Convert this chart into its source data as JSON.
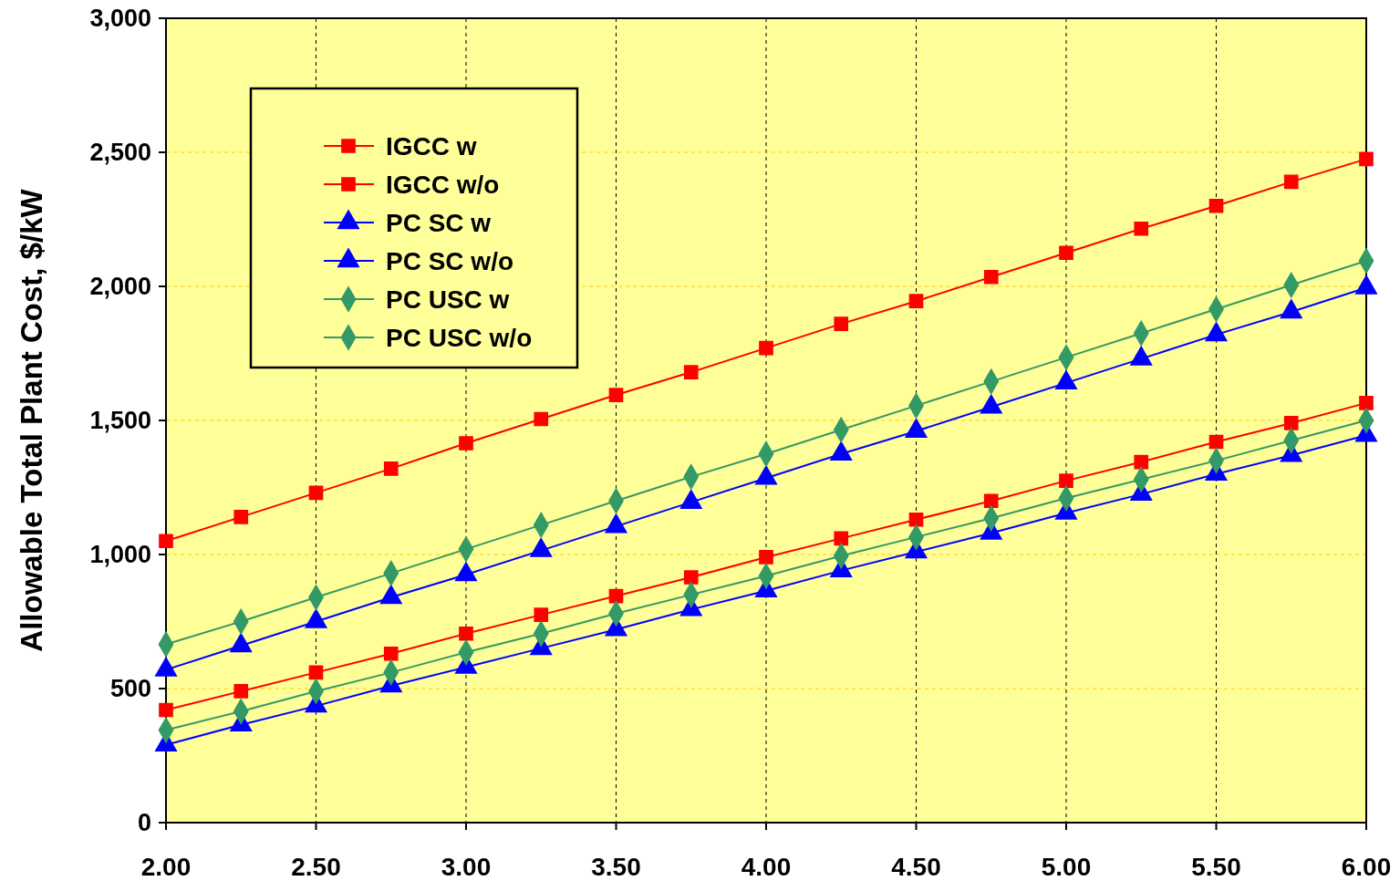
{
  "chart_data": {
    "type": "line",
    "ylabel": "Allowable Total Plant Cost, $/kW",
    "x": [
      2,
      2.25,
      2.5,
      2.75,
      3,
      3.25,
      3.5,
      3.75,
      4,
      4.25,
      4.5,
      4.75,
      5,
      5.25,
      5.5,
      5.75,
      6
    ],
    "xlim": [
      2,
      6
    ],
    "xticks": [
      {
        "value": 2,
        "label": "2.00"
      },
      {
        "value": 2.5,
        "label": "2.50"
      },
      {
        "value": 3,
        "label": "3.00"
      },
      {
        "value": 3.5,
        "label": "3.50"
      },
      {
        "value": 4,
        "label": "4.00"
      },
      {
        "value": 4.5,
        "label": "4.50"
      },
      {
        "value": 5,
        "label": "5.00"
      },
      {
        "value": 5.5,
        "label": "5.50"
      },
      {
        "value": 6,
        "label": "6.00"
      }
    ],
    "ylim": [
      0,
      3000
    ],
    "yticks": [
      0,
      {
        "value": 500,
        "label": "500"
      },
      {
        "value": 1000,
        "label": "1,000"
      },
      {
        "value": 1500,
        "label": "1,500"
      },
      {
        "value": 2000,
        "label": "2,000"
      },
      {
        "value": 2500,
        "label": "2,500"
      },
      {
        "value": 3000,
        "label": "3,000"
      }
    ],
    "grid": true,
    "legend": "top left",
    "line_style": "solid",
    "series": [
      {
        "name": "IGCC w",
        "color": "#ff0000",
        "marker": "square",
        "values": [
          1050,
          1140,
          1230,
          1320,
          1415,
          1505,
          1595,
          1680,
          1770,
          1860,
          1945,
          2035,
          2125,
          2215,
          2300,
          2390,
          2475
        ]
      },
      {
        "name": "IGCC w/o",
        "color": "#ff0000",
        "marker": "square",
        "values": [
          420,
          490,
          560,
          630,
          705,
          775,
          845,
          915,
          990,
          1060,
          1130,
          1200,
          1275,
          1345,
          1420,
          1490,
          1565
        ]
      },
      {
        "name": "PC SC w",
        "color": "#0000ff",
        "marker": "triangle",
        "values": [
          570,
          660,
          750,
          840,
          925,
          1015,
          1105,
          1195,
          1285,
          1375,
          1460,
          1550,
          1640,
          1730,
          1820,
          1905,
          1995
        ]
      },
      {
        "name": "PC SC w/o",
        "color": "#0000ff",
        "marker": "triangle",
        "values": [
          290,
          365,
          435,
          510,
          580,
          650,
          720,
          795,
          865,
          940,
          1010,
          1080,
          1155,
          1225,
          1300,
          1370,
          1445
        ]
      },
      {
        "name": "PC USC w",
        "color": "#339966",
        "marker": "diamond",
        "values": [
          665,
          750,
          840,
          930,
          1020,
          1110,
          1200,
          1290,
          1375,
          1465,
          1555,
          1645,
          1735,
          1825,
          1915,
          2005,
          2095
        ]
      },
      {
        "name": "PC USC w/o",
        "color": "#339966",
        "marker": "diamond",
        "values": [
          345,
          415,
          490,
          560,
          635,
          705,
          780,
          850,
          920,
          995,
          1065,
          1135,
          1210,
          1280,
          1350,
          1425,
          1500
        ]
      }
    ]
  }
}
